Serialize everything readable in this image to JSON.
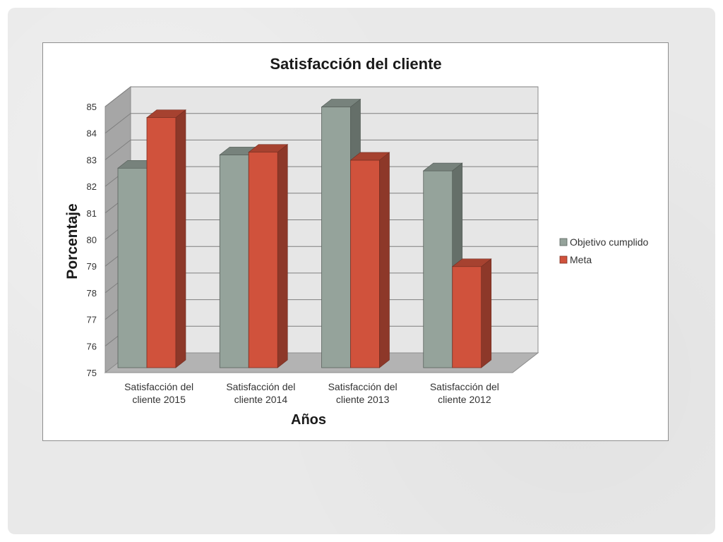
{
  "chart_data": {
    "type": "bar",
    "title": "Satisfacción del cliente",
    "xlabel": "Años",
    "ylabel": "Porcentaje",
    "categories": [
      [
        "Satisfacción del",
        "cliente 2015"
      ],
      [
        "Satisfacción del",
        "cliente 2014"
      ],
      [
        "Satisfacción del",
        "cliente 2013"
      ],
      [
        "Satisfacción del",
        "cliente 2012"
      ]
    ],
    "series": [
      {
        "name": "Objetivo cumplido",
        "color": "#95a39b",
        "values": [
          82.5,
          83.0,
          84.8,
          82.4
        ]
      },
      {
        "name": "Meta",
        "color": "#d0523c",
        "values": [
          84.4,
          83.1,
          82.8,
          78.8
        ]
      }
    ],
    "ylim": [
      75,
      85
    ],
    "yticks": [
      "75",
      "76",
      "77",
      "78",
      "79",
      "80",
      "81",
      "82",
      "83",
      "84",
      "85"
    ],
    "grid": true,
    "legend": "right",
    "three_d": true
  }
}
